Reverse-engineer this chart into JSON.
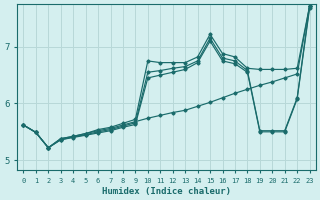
{
  "xlabel": "Humidex (Indice chaleur)",
  "bg_color": "#d4efef",
  "grid_color": "#b8d8d8",
  "line_color": "#1a6b6b",
  "xlim": [
    -0.5,
    23.5
  ],
  "ylim": [
    4.82,
    7.75
  ],
  "yticks": [
    5,
    6,
    7
  ],
  "xticks": [
    0,
    1,
    2,
    3,
    4,
    5,
    6,
    7,
    8,
    9,
    10,
    11,
    12,
    13,
    14,
    15,
    16,
    17,
    18,
    19,
    20,
    21,
    22,
    23
  ],
  "series": [
    [
      5.62,
      5.49,
      5.22,
      5.38,
      5.42,
      5.47,
      5.52,
      5.56,
      5.62,
      5.68,
      5.74,
      5.79,
      5.84,
      5.88,
      5.95,
      6.02,
      6.1,
      6.18,
      6.25,
      6.32,
      6.38,
      6.45,
      6.52,
      7.72
    ],
    [
      5.62,
      5.49,
      5.22,
      5.38,
      5.42,
      5.47,
      5.54,
      5.58,
      5.65,
      5.72,
      6.75,
      6.72,
      6.72,
      6.72,
      6.82,
      7.22,
      6.88,
      6.82,
      6.62,
      6.6,
      6.6,
      6.6,
      6.62,
      7.72
    ],
    [
      5.62,
      5.49,
      5.22,
      5.36,
      5.41,
      5.45,
      5.5,
      5.54,
      5.6,
      5.66,
      6.55,
      6.58,
      6.62,
      6.65,
      6.75,
      7.15,
      6.8,
      6.75,
      6.58,
      5.52,
      5.52,
      5.52,
      6.1,
      7.72
    ],
    [
      5.62,
      5.49,
      5.22,
      5.36,
      5.4,
      5.44,
      5.48,
      5.52,
      5.58,
      5.63,
      6.45,
      6.5,
      6.55,
      6.6,
      6.72,
      7.1,
      6.75,
      6.7,
      6.55,
      5.5,
      5.5,
      5.5,
      6.08,
      7.68
    ]
  ]
}
